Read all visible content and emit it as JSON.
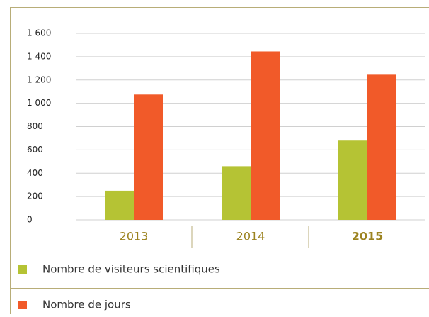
{
  "chart_data": {
    "type": "bar",
    "categories": [
      "2013",
      "2014",
      "2015"
    ],
    "series": [
      {
        "name": "Nombre de visiteurs scientifiques",
        "color": "#b5c334",
        "values": [
          250,
          460,
          680
        ]
      },
      {
        "name": "Nombre de jours",
        "color": "#f15a29",
        "values": [
          1075,
          1445,
          1245
        ]
      }
    ],
    "ylim": [
      0,
      1600
    ],
    "yticks": [
      0,
      200,
      400,
      600,
      800,
      {
        "value": 1000,
        "label": "1 000"
      },
      {
        "value": 1200,
        "label": "1 200"
      },
      {
        "value": 1400,
        "label": "1 400"
      },
      {
        "value": 1600,
        "label": "1 600"
      }
    ],
    "grid": true
  }
}
